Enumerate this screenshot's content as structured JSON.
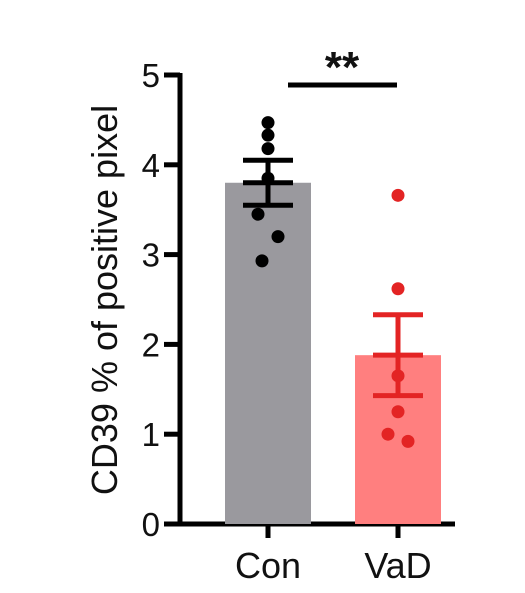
{
  "chart_data": {
    "type": "bar",
    "title": "",
    "xlabel": "",
    "ylabel": "CD39 % of positive pixel",
    "ylim": [
      0,
      5
    ],
    "yticks": [
      "0",
      "1",
      "2",
      "3",
      "4",
      "5"
    ],
    "categories": [
      "Con",
      "VaD"
    ],
    "values": [
      3.8,
      1.88
    ],
    "error": [
      0.25,
      0.45
    ],
    "points": [
      [
        4.47,
        4.33,
        4.18,
        3.85,
        3.45,
        3.2,
        2.93
      ],
      [
        3.66,
        2.62,
        1.65,
        1.25,
        1.0,
        0.92
      ]
    ],
    "significance": "**",
    "colors": {
      "bar_fills": [
        "#9a999e",
        "#ff7f7f"
      ],
      "marks": [
        "#000000",
        "#e32424"
      ],
      "axis": "#000000"
    },
    "grid": false
  }
}
